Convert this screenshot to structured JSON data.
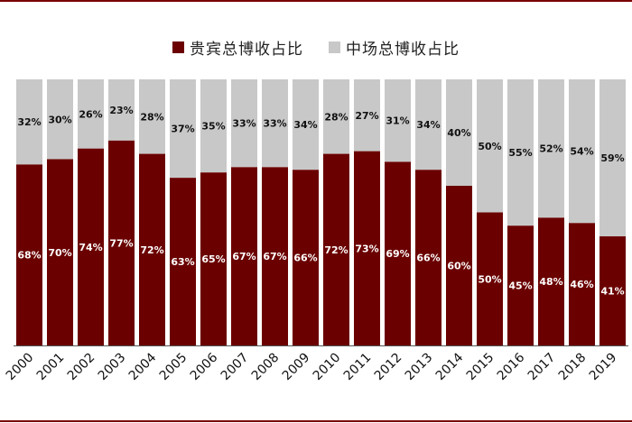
{
  "chart_data": {
    "type": "bar",
    "stacked": true,
    "categories": [
      "2000",
      "2001",
      "2002",
      "2003",
      "2004",
      "2005",
      "2006",
      "2007",
      "2008",
      "2009",
      "2010",
      "2011",
      "2012",
      "2013",
      "2014",
      "2015",
      "2016",
      "2017",
      "2018",
      "2019"
    ],
    "series": [
      {
        "name": "贵宾总博收占比",
        "color": "#6b0000",
        "values": [
          68,
          70,
          74,
          77,
          72,
          63,
          65,
          67,
          67,
          66,
          72,
          73,
          69,
          66,
          60,
          50,
          45,
          48,
          46,
          41
        ]
      },
      {
        "name": "中场总博收占比",
        "color": "#c8c8c8",
        "values": [
          32,
          30,
          26,
          23,
          28,
          37,
          35,
          33,
          33,
          34,
          28,
          27,
          31,
          34,
          40,
          50,
          55,
          52,
          54,
          59
        ]
      }
    ],
    "ylim": [
      0,
      100
    ],
    "value_suffix": "%",
    "legend": "top-center",
    "grid": false
  }
}
